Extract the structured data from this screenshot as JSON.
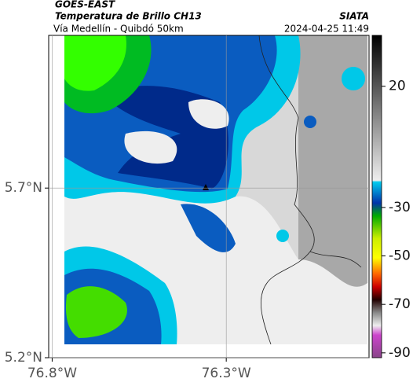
{
  "header": {
    "source": "GOES-EAST",
    "title": "Temperatura de Brillo CH13",
    "org": "SIATA",
    "subtitle": "Vía Medellín - Quibdó 50km",
    "timestamp": "2024-04-25 11:49"
  },
  "map": {
    "xlim": [
      -76.81,
      -75.89
    ],
    "ylim": [
      5.2,
      6.15
    ],
    "xticks": [
      {
        "value": -76.8,
        "label": "76.8°W"
      },
      {
        "value": -76.3,
        "label": "76.3°W"
      }
    ],
    "yticks": [
      {
        "value": 5.7,
        "label": "5.7°N"
      },
      {
        "value": 5.2,
        "label": "5.2°N"
      }
    ],
    "grid": true
  },
  "colorbar": {
    "lim": [
      -92,
      41
    ],
    "ticks": [
      20,
      -30,
      -50,
      -70,
      -90
    ]
  }
}
